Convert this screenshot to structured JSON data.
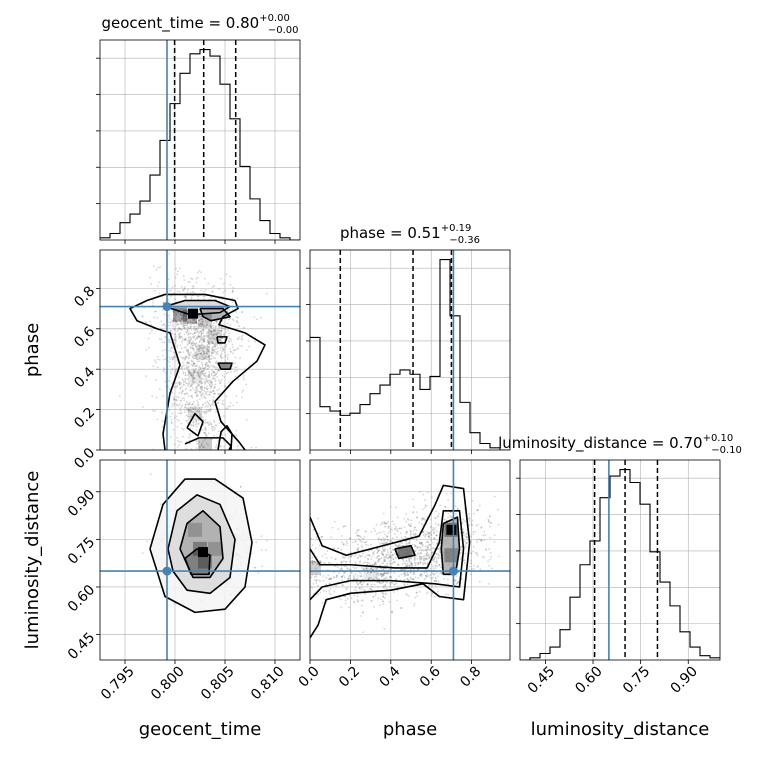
{
  "chart_data": {
    "type": "corner",
    "parameters": [
      "geocent_time",
      "phase",
      "luminosity_distance"
    ],
    "truths": [
      0.7992,
      0.71,
      0.65
    ],
    "truth_color": "#4682b4",
    "hist_color": "#000000",
    "quantile_lines": "dashed",
    "grid": true,
    "diagonal": [
      {
        "param": "geocent_time",
        "title_prefix": "geocent_time = ",
        "median": "0.80",
        "err_plus": "+0.00",
        "err_minus": "−0.00",
        "range": [
          0.7925,
          0.8125
        ],
        "quantiles": [
          0.79996,
          0.80287,
          0.80607
        ],
        "bin_edges": [
          0.7925,
          0.7935,
          0.7945,
          0.7955,
          0.7965,
          0.7975,
          0.7985,
          0.7995,
          0.8005,
          0.8015,
          0.8025,
          0.8035,
          0.8045,
          0.8055,
          0.8065,
          0.8075,
          0.8085,
          0.8095,
          0.8105,
          0.8115,
          0.8125
        ],
        "counts": [
          1,
          3,
          8,
          12,
          18,
          30,
          46,
          63,
          77,
          86,
          88,
          85,
          72,
          56,
          34,
          19,
          9,
          3,
          1,
          0
        ]
      },
      {
        "param": "phase",
        "title_prefix": "phase = ",
        "median": "0.51",
        "err_plus": "+0.19",
        "err_minus": "−0.36",
        "range": [
          0.0,
          0.99
        ],
        "quantiles": [
          0.15,
          0.51,
          0.7
        ],
        "bin_edges": [
          0.0,
          0.0495,
          0.099,
          0.1485,
          0.198,
          0.2475,
          0.297,
          0.3465,
          0.396,
          0.4455,
          0.495,
          0.5445,
          0.594,
          0.6435,
          0.693,
          0.7425,
          0.792,
          0.8415,
          0.891,
          0.9405,
          0.99
        ],
        "counts": [
          52,
          20,
          18,
          16,
          17,
          21,
          26,
          30,
          35,
          37,
          35,
          28,
          34,
          88,
          62,
          22,
          8,
          3,
          1,
          0
        ]
      },
      {
        "param": "luminosity_distance",
        "title_prefix": "luminosity_distance = ",
        "median": "0.70",
        "err_plus": "+0.10",
        "err_minus": "−0.10",
        "range": [
          0.37,
          1.0
        ],
        "quantiles": [
          0.605,
          0.701,
          0.803
        ],
        "bin_edges": [
          0.37,
          0.4015,
          0.433,
          0.4645,
          0.496,
          0.5275,
          0.559,
          0.5905,
          0.622,
          0.6535,
          0.685,
          0.7165,
          0.748,
          0.7795,
          0.811,
          0.8425,
          0.874,
          0.9055,
          0.937,
          0.9685,
          1.0
        ],
        "counts": [
          0,
          1,
          3,
          6,
          14,
          29,
          44,
          55,
          75,
          85,
          88,
          82,
          72,
          50,
          36,
          25,
          13,
          6,
          2,
          1
        ]
      }
    ],
    "off_diagonal": [
      {
        "x": "geocent_time",
        "y": "phase",
        "contours": [
          [
            [
              0.7972,
              0.74
            ],
            [
              0.799,
              0.77
            ],
            [
              0.803,
              0.77
            ],
            [
              0.806,
              0.74
            ],
            [
              0.8063,
              0.7
            ],
            [
              0.8048,
              0.66
            ],
            [
              0.8044,
              0.62
            ],
            [
              0.807,
              0.58
            ],
            [
              0.809,
              0.52
            ],
            [
              0.8082,
              0.44
            ],
            [
              0.8058,
              0.34
            ],
            [
              0.804,
              0.24
            ],
            [
              0.8046,
              0.14
            ],
            [
              0.8064,
              0.04
            ],
            [
              0.807,
              0.0
            ]
          ],
          [
            [
              0.799,
              0.71
            ],
            [
              0.801,
              0.74
            ],
            [
              0.804,
              0.74
            ],
            [
              0.8055,
              0.71
            ],
            [
              0.8045,
              0.68
            ],
            [
              0.8015,
              0.67
            ],
            [
              0.799,
              0.71
            ]
          ],
          [
            [
              0.8025,
              0.7
            ],
            [
              0.8048,
              0.7
            ],
            [
              0.8055,
              0.66
            ],
            [
              0.8036,
              0.64
            ],
            [
              0.8028,
              0.66
            ],
            [
              0.8025,
              0.7
            ]
          ],
          [
            [
              0.8043,
              0.43
            ],
            [
              0.8057,
              0.43
            ],
            [
              0.8055,
              0.4
            ],
            [
              0.8046,
              0.4
            ],
            [
              0.8043,
              0.43
            ]
          ],
          [
            [
              0.8042,
              0.56
            ],
            [
              0.8052,
              0.56
            ],
            [
              0.805,
              0.53
            ],
            [
              0.8043,
              0.53
            ],
            [
              0.8042,
              0.56
            ]
          ],
          [
            [
              0.8012,
              0.11
            ],
            [
              0.802,
              0.18
            ],
            [
              0.8028,
              0.14
            ],
            [
              0.8023,
              0.07
            ],
            [
              0.8012,
              0.11
            ]
          ],
          [
            [
              0.801,
              0.03
            ],
            [
              0.8024,
              0.06
            ],
            [
              0.8048,
              0.06
            ],
            [
              0.8056,
              0.02
            ],
            [
              0.8054,
              0.0
            ]
          ],
          [
            [
              0.8043,
              0.0
            ],
            [
              0.8046,
              0.09
            ],
            [
              0.8052,
              0.12
            ],
            [
              0.8057,
              0.08
            ],
            [
              0.8056,
              0.0
            ]
          ],
          [
            [
              0.799,
              0.0
            ],
            [
              0.7988,
              0.08
            ],
            [
              0.7995,
              0.28
            ],
            [
              0.8005,
              0.42
            ],
            [
              0.8,
              0.5
            ],
            [
              0.7995,
              0.58
            ],
            [
              0.7982,
              0.6
            ],
            [
              0.7962,
              0.64
            ],
            [
              0.7955,
              0.7
            ],
            [
              0.7972,
              0.74
            ]
          ]
        ],
        "shade": [
          [
            0.8005,
            0.67,
            0.6
          ],
          [
            0.8015,
            0.66,
            0.5
          ],
          [
            0.803,
            0.64,
            0.3
          ],
          [
            0.804,
            0.56,
            0.25
          ],
          [
            0.8028,
            0.48,
            0.2
          ],
          [
            0.802,
            0.36,
            0.15
          ],
          [
            0.802,
            0.18,
            0.2
          ],
          [
            0.803,
            0.02,
            0.35
          ]
        ],
        "peak": [
          0.8018,
          0.675
        ]
      },
      {
        "x": "geocent_time",
        "y": "luminosity_distance",
        "contours": [
          [
            [
              0.7975,
              0.72
            ],
            [
              0.7988,
              0.86
            ],
            [
              0.801,
              0.94
            ],
            [
              0.804,
              0.94
            ],
            [
              0.8068,
              0.88
            ],
            [
              0.8077,
              0.74
            ],
            [
              0.807,
              0.6
            ],
            [
              0.805,
              0.53
            ],
            [
              0.802,
              0.52
            ],
            [
              0.799,
              0.57
            ],
            [
              0.7975,
              0.72
            ]
          ],
          [
            [
              0.7993,
              0.72
            ],
            [
              0.8002,
              0.84
            ],
            [
              0.8022,
              0.89
            ],
            [
              0.8045,
              0.86
            ],
            [
              0.806,
              0.75
            ],
            [
              0.8055,
              0.63
            ],
            [
              0.8035,
              0.58
            ],
            [
              0.8012,
              0.59
            ],
            [
              0.7998,
              0.65
            ],
            [
              0.7993,
              0.72
            ]
          ],
          [
            [
              0.8005,
              0.72
            ],
            [
              0.8012,
              0.8
            ],
            [
              0.8028,
              0.84
            ],
            [
              0.8045,
              0.79
            ],
            [
              0.8048,
              0.69
            ],
            [
              0.8035,
              0.63
            ],
            [
              0.8018,
              0.63
            ],
            [
              0.8005,
              0.72
            ]
          ],
          [
            [
              0.801,
              0.69
            ],
            [
              0.8022,
              0.72
            ],
            [
              0.8035,
              0.7
            ],
            [
              0.8034,
              0.64
            ],
            [
              0.8016,
              0.64
            ],
            [
              0.801,
              0.69
            ]
          ]
        ],
        "shade": [
          [
            0.8025,
            0.72,
            0.5
          ],
          [
            0.803,
            0.68,
            0.45
          ],
          [
            0.802,
            0.78,
            0.3
          ],
          [
            0.804,
            0.72,
            0.3
          ]
        ],
        "peak": [
          0.8028,
          0.71
        ]
      },
      {
        "x": "phase",
        "y": "luminosity_distance",
        "contours": [
          [
            [
              0.0,
              0.82
            ],
            [
              0.06,
              0.73
            ],
            [
              0.18,
              0.7
            ],
            [
              0.36,
              0.73
            ],
            [
              0.54,
              0.76
            ],
            [
              0.62,
              0.86
            ],
            [
              0.66,
              0.92
            ],
            [
              0.76,
              0.91
            ],
            [
              0.79,
              0.74
            ],
            [
              0.76,
              0.56
            ],
            [
              0.64,
              0.57
            ],
            [
              0.56,
              0.61
            ],
            [
              0.4,
              0.59
            ],
            [
              0.2,
              0.58
            ],
            [
              0.08,
              0.56
            ],
            [
              0.04,
              0.48
            ],
            [
              0.0,
              0.44
            ]
          ],
          [
            [
              0.0,
              0.72
            ],
            [
              0.05,
              0.67
            ],
            [
              0.2,
              0.67
            ],
            [
              0.42,
              0.66
            ],
            [
              0.58,
              0.66
            ],
            [
              0.64,
              0.74
            ],
            [
              0.66,
              0.84
            ],
            [
              0.74,
              0.84
            ],
            [
              0.76,
              0.72
            ],
            [
              0.74,
              0.6
            ],
            [
              0.62,
              0.61
            ],
            [
              0.4,
              0.62
            ],
            [
              0.2,
              0.62
            ],
            [
              0.06,
              0.6
            ],
            [
              0.0,
              0.56
            ]
          ],
          [
            [
              0.66,
              0.8
            ],
            [
              0.73,
              0.82
            ],
            [
              0.74,
              0.72
            ],
            [
              0.72,
              0.64
            ],
            [
              0.66,
              0.64
            ],
            [
              0.65,
              0.72
            ],
            [
              0.66,
              0.8
            ]
          ],
          [
            [
              0.42,
              0.72
            ],
            [
              0.5,
              0.73
            ],
            [
              0.52,
              0.7
            ],
            [
              0.44,
              0.69
            ],
            [
              0.42,
              0.72
            ]
          ]
        ],
        "shade": [
          [
            0.7,
            0.78,
            0.6
          ],
          [
            0.7,
            0.7,
            0.45
          ],
          [
            0.3,
            0.64,
            0.15
          ],
          [
            0.02,
            0.66,
            0.3
          ],
          [
            0.47,
            0.71,
            0.25
          ]
        ],
        "peak": [
          0.7,
          0.78
        ]
      }
    ],
    "scatter_spread": {
      "geocent_time": 0.0034,
      "phase": 0.2,
      "luminosity_distance": 0.1
    },
    "axes": {
      "geocent_time": {
        "label": "geocent_time",
        "ticks": [
          0.795,
          0.8,
          0.805,
          0.81
        ],
        "tick_labels": [
          "0.795",
          "0.800",
          "0.805",
          "0.810"
        ]
      },
      "phase": {
        "label": "phase",
        "ticks": [
          0.0,
          0.2,
          0.4,
          0.6,
          0.8
        ],
        "tick_labels": [
          "0.0",
          "0.2",
          "0.4",
          "0.6",
          "0.8"
        ]
      },
      "luminosity_distance": {
        "label": "luminosity_distance",
        "ticks": [
          0.45,
          0.6,
          0.75,
          0.9
        ],
        "tick_labels": [
          "0.45",
          "0.60",
          "0.75",
          "0.90"
        ]
      }
    }
  }
}
